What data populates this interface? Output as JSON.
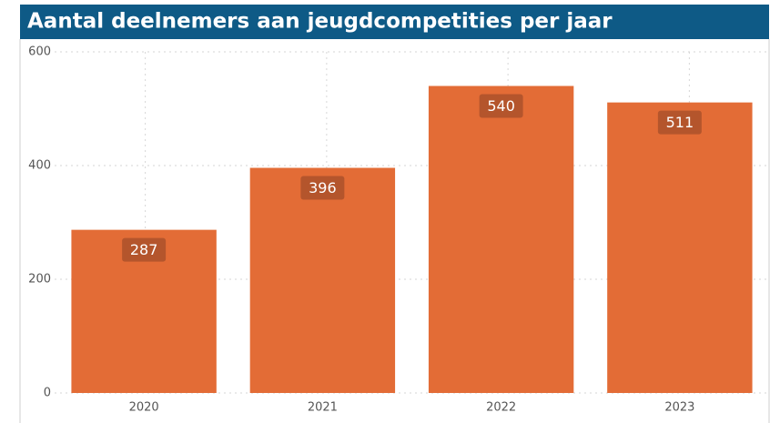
{
  "chart_data": {
    "type": "bar",
    "title": "Aantal deelnemers aan jeugdcompetities per jaar",
    "categories": [
      "2020",
      "2021",
      "2022",
      "2023"
    ],
    "values": [
      287,
      396,
      540,
      511
    ],
    "color": "#e36c36",
    "ylim": [
      0,
      600
    ],
    "yticks": [
      0,
      200,
      400,
      600
    ],
    "grid": true
  }
}
